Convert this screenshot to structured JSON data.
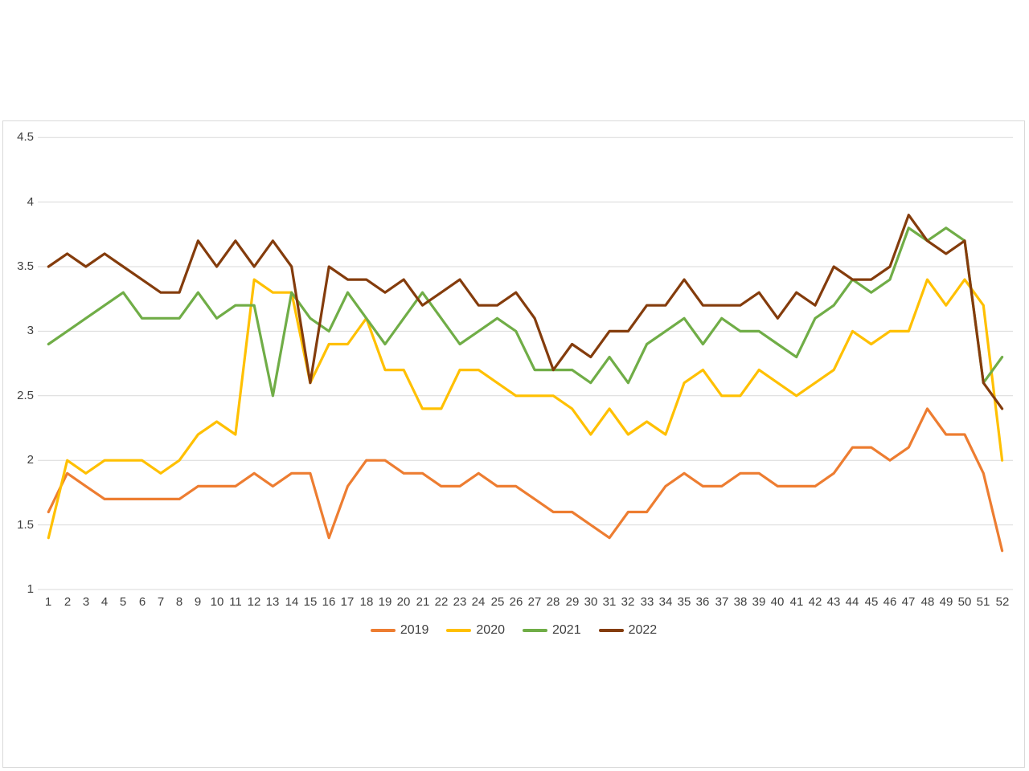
{
  "page": {
    "background_color": "#FFFFFF",
    "frame_border_color": "#D9D9D9"
  },
  "chart": {
    "gridline_color": "#D9D9D9",
    "axis_text_color": "#404040",
    "y_tick_labels": [
      "4.5",
      "4",
      "3.5",
      "3",
      "2.5",
      "2",
      "1.5",
      "1"
    ],
    "x_tick_labels": [
      "1",
      "2",
      "3",
      "4",
      "5",
      "6",
      "7",
      "8",
      "9",
      "10",
      "11",
      "12",
      "13",
      "14",
      "15",
      "16",
      "17",
      "18",
      "19",
      "20",
      "21",
      "22",
      "23",
      "24",
      "25",
      "26",
      "27",
      "28",
      "29",
      "30",
      "31",
      "32",
      "33",
      "34",
      "35",
      "36",
      "37",
      "38",
      "39",
      "40",
      "41",
      "42",
      "43",
      "44",
      "45",
      "46",
      "47",
      "48",
      "49",
      "50",
      "51",
      "52"
    ]
  },
  "chart_data": {
    "type": "line",
    "title": "",
    "xlabel": "",
    "ylabel": "",
    "x": [
      1,
      2,
      3,
      4,
      5,
      6,
      7,
      8,
      9,
      10,
      11,
      12,
      13,
      14,
      15,
      16,
      17,
      18,
      19,
      20,
      21,
      22,
      23,
      24,
      25,
      26,
      27,
      28,
      29,
      30,
      31,
      32,
      33,
      34,
      35,
      36,
      37,
      38,
      39,
      40,
      41,
      42,
      43,
      44,
      45,
      46,
      47,
      48,
      49,
      50,
      51,
      52
    ],
    "ylim": [
      1,
      4.5
    ],
    "ytick_step": 0.5,
    "grid": true,
    "legend_position": "bottom",
    "series": [
      {
        "name": "2019",
        "color": "#ED7D31",
        "values": [
          1.6,
          1.9,
          1.8,
          1.7,
          1.7,
          1.7,
          1.7,
          1.7,
          1.8,
          1.8,
          1.8,
          1.9,
          1.8,
          1.9,
          1.9,
          1.4,
          1.8,
          2.0,
          2.0,
          1.9,
          1.9,
          1.8,
          1.8,
          1.9,
          1.8,
          1.8,
          1.7,
          1.6,
          1.6,
          1.5,
          1.4,
          1.6,
          1.6,
          1.8,
          1.9,
          1.8,
          1.8,
          1.9,
          1.9,
          1.8,
          1.8,
          1.8,
          1.9,
          2.1,
          2.1,
          2.0,
          2.1,
          2.4,
          2.2,
          2.2,
          1.9,
          1.3
        ]
      },
      {
        "name": "2020",
        "color": "#FFC000",
        "values": [
          1.4,
          2.0,
          1.9,
          2.0,
          2.0,
          2.0,
          1.9,
          2.0,
          2.2,
          2.3,
          2.2,
          3.4,
          3.3,
          3.3,
          2.6,
          2.9,
          2.9,
          3.1,
          2.7,
          2.7,
          2.4,
          2.4,
          2.7,
          2.7,
          2.6,
          2.5,
          2.5,
          2.5,
          2.4,
          2.2,
          2.4,
          2.2,
          2.3,
          2.2,
          2.6,
          2.7,
          2.5,
          2.5,
          2.7,
          2.6,
          2.5,
          2.6,
          2.7,
          3.0,
          2.9,
          3.0,
          3.0,
          3.4,
          3.2,
          3.4,
          3.2,
          2.0
        ]
      },
      {
        "name": "2021",
        "color": "#70AD47",
        "values": [
          2.9,
          3.0,
          3.1,
          3.2,
          3.3,
          3.1,
          3.1,
          3.1,
          3.3,
          3.1,
          3.2,
          3.2,
          2.5,
          3.3,
          3.1,
          3.0,
          3.3,
          3.1,
          2.9,
          3.1,
          3.3,
          3.1,
          2.9,
          3.0,
          3.1,
          3.0,
          2.7,
          2.7,
          2.7,
          2.6,
          2.8,
          2.6,
          2.9,
          3.0,
          3.1,
          2.9,
          3.1,
          3.0,
          3.0,
          2.9,
          2.8,
          3.1,
          3.2,
          3.4,
          3.3,
          3.4,
          3.8,
          3.7,
          3.8,
          3.7,
          2.6,
          2.8
        ]
      },
      {
        "name": "2022",
        "color": "#843C0C",
        "values": [
          3.5,
          3.6,
          3.5,
          3.6,
          3.5,
          3.4,
          3.3,
          3.3,
          3.7,
          3.5,
          3.7,
          3.5,
          3.7,
          3.5,
          2.6,
          3.5,
          3.4,
          3.4,
          3.3,
          3.4,
          3.2,
          3.3,
          3.4,
          3.2,
          3.2,
          3.3,
          3.1,
          2.7,
          2.9,
          2.8,
          3.0,
          3.0,
          3.2,
          3.2,
          3.4,
          3.2,
          3.2,
          3.2,
          3.3,
          3.1,
          3.3,
          3.2,
          3.5,
          3.4,
          3.4,
          3.5,
          3.9,
          3.7,
          3.6,
          3.7,
          2.6,
          2.4
        ]
      }
    ]
  }
}
